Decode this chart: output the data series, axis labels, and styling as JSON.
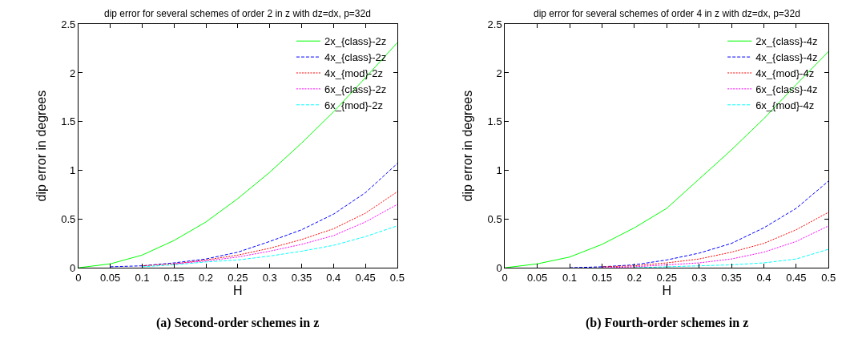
{
  "chart_data": [
    {
      "type": "line",
      "title": "dip error for several schemes of order 2 in z with dz=dx, p=32d",
      "xlabel": "H",
      "ylabel": "dip error in degrees",
      "x": [
        0,
        0.05,
        0.1,
        0.15,
        0.2,
        0.25,
        0.3,
        0.35,
        0.4,
        0.45,
        0.5
      ],
      "series": [
        {
          "name": "2x_{class}-2z",
          "color": "#00ff00",
          "line_style": "solid",
          "values": [
            0,
            0.04,
            0.13,
            0.28,
            0.47,
            0.71,
            0.98,
            1.28,
            1.6,
            1.95,
            2.31
          ]
        },
        {
          "name": "4x_{class}-2z",
          "color": "#0000ff",
          "line_style": "dashed",
          "values": [
            null,
            0.01,
            0.02,
            0.05,
            0.09,
            0.16,
            0.27,
            0.39,
            0.55,
            0.77,
            1.07
          ]
        },
        {
          "name": "4x_{mod}-2z",
          "color": "#ff0000",
          "line_style": "dotted",
          "values": [
            null,
            null,
            0.02,
            0.04,
            0.08,
            0.13,
            0.2,
            0.29,
            0.4,
            0.56,
            0.78
          ]
        },
        {
          "name": "6x_{class}-2z",
          "color": "#ff00ff",
          "line_style": "dotted",
          "values": [
            null,
            null,
            null,
            0.04,
            0.07,
            0.11,
            0.17,
            0.24,
            0.33,
            0.47,
            0.65
          ]
        },
        {
          "name": "6x_{mod}-2z",
          "color": "#00ffff",
          "line_style": "dashed",
          "values": [
            null,
            null,
            0.01,
            0.03,
            0.06,
            0.08,
            0.12,
            0.17,
            0.23,
            0.32,
            0.43
          ]
        }
      ],
      "xlim": [
        0,
        0.5
      ],
      "ylim": [
        0,
        2.5
      ],
      "xticks": [
        0,
        0.05,
        0.1,
        0.15,
        0.2,
        0.25,
        0.3,
        0.35,
        0.4,
        0.45,
        0.5
      ],
      "yticks": [
        0,
        0.5,
        1,
        1.5,
        2,
        2.5
      ],
      "grid": false,
      "legend": "top right",
      "marker": "none",
      "annotations": [
        "(a) Second-order schemes in z"
      ]
    },
    {
      "type": "line",
      "title": "dip error for several schemes of order 4 in z with dz=dx, p=32d",
      "xlabel": "H",
      "ylabel": "dip error in degrees",
      "x": [
        0,
        0.05,
        0.1,
        0.15,
        0.2,
        0.25,
        0.3,
        0.35,
        0.4,
        0.45,
        0.5
      ],
      "series": [
        {
          "name": "2x_{class}-4z",
          "color": "#00ff00",
          "line_style": "solid",
          "values": [
            0,
            0.04,
            0.11,
            0.24,
            0.41,
            0.61,
            0.91,
            1.21,
            1.53,
            1.88,
            2.22
          ]
        },
        {
          "name": "4x_{class}-4z",
          "color": "#0000ff",
          "line_style": "dashed",
          "values": [
            null,
            null,
            0,
            0.01,
            0.03,
            0.08,
            0.15,
            0.25,
            0.41,
            0.61,
            0.89
          ]
        },
        {
          "name": "4x_{mod}-4z",
          "color": "#ff0000",
          "line_style": "dotted",
          "values": [
            null,
            null,
            null,
            0.01,
            0.02,
            0.05,
            0.09,
            0.16,
            0.25,
            0.39,
            0.57
          ]
        },
        {
          "name": "6x_{class}-4z",
          "color": "#ff00ff",
          "line_style": "dotted",
          "values": [
            null,
            null,
            null,
            0,
            0.01,
            0.03,
            0.05,
            0.09,
            0.16,
            0.27,
            0.43
          ]
        },
        {
          "name": "6x_{mod}-4z",
          "color": "#00ffff",
          "line_style": "dashed",
          "values": [
            null,
            null,
            null,
            null,
            0,
            0.01,
            0.02,
            0.03,
            0.05,
            0.09,
            0.19
          ]
        }
      ],
      "xlim": [
        0,
        0.5
      ],
      "ylim": [
        0,
        2.5
      ],
      "xticks": [
        0,
        0.05,
        0.1,
        0.15,
        0.2,
        0.25,
        0.3,
        0.35,
        0.4,
        0.45,
        0.5
      ],
      "yticks": [
        0,
        0.5,
        1,
        1.5,
        2,
        2.5
      ],
      "grid": false,
      "legend": "top right",
      "marker": "none",
      "annotations": [
        "(b) Fourth-order schemes in z"
      ]
    }
  ]
}
